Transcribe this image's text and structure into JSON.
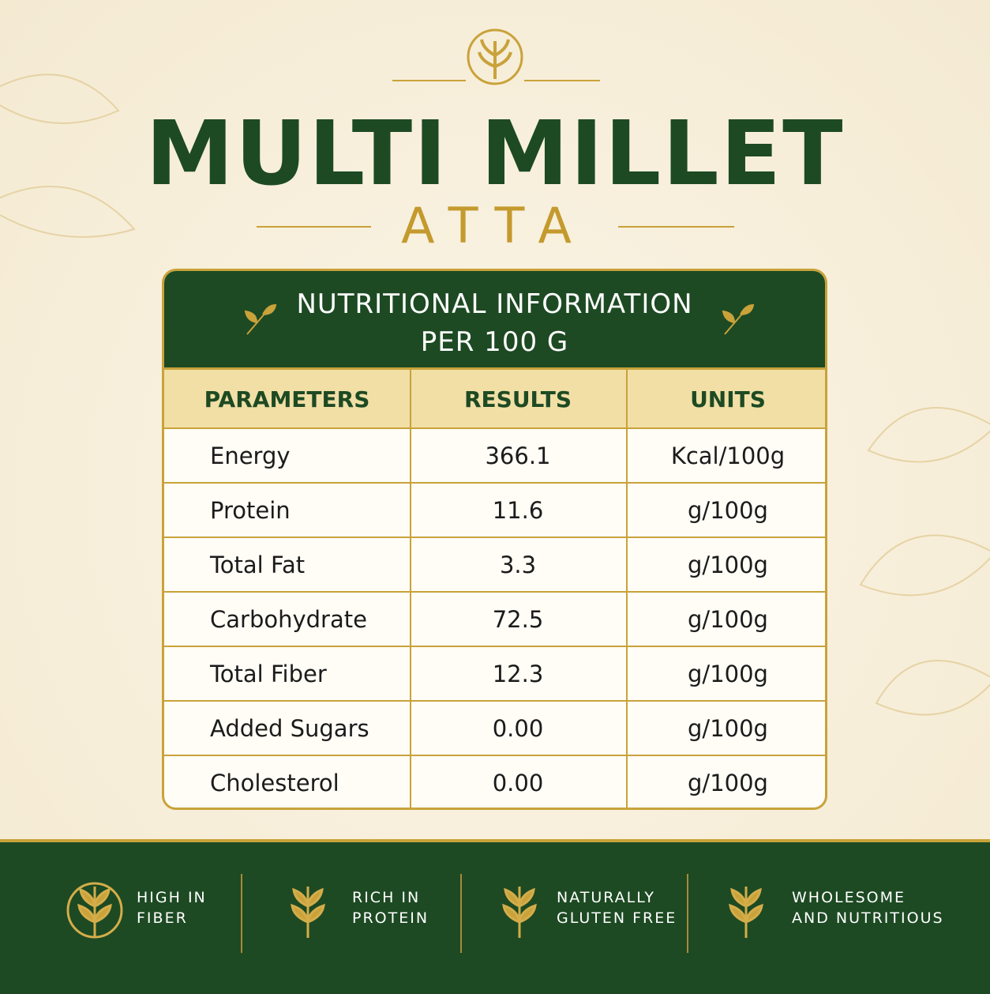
{
  "header": {
    "title": "MULTI MILLET",
    "subtitle": "ATTA"
  },
  "table": {
    "title": "NUTRITIONAL INFORMATION",
    "subtitle": "PER 100 G",
    "columns": [
      "PARAMETERS",
      "RESULTS",
      "UNITS"
    ],
    "rows": [
      [
        "Energy",
        "366.1",
        "Kcal/100g"
      ],
      [
        "Protein",
        "11.6",
        "g/100g"
      ],
      [
        "Total Fat",
        "3.3",
        "g/100g"
      ],
      [
        "Carbohydrate",
        "72.5",
        "g/100g"
      ],
      [
        "Total Fiber",
        "12.3",
        "g/100g"
      ],
      [
        "Added Sugars",
        "0.00",
        "g/100g"
      ],
      [
        "Cholesterol",
        "0.00",
        "g/100g"
      ]
    ]
  },
  "features": [
    {
      "lines": [
        "HIGH IN",
        "FIBER"
      ]
    },
    {
      "lines": [
        "RICH IN",
        "PROTEIN"
      ]
    },
    {
      "lines": [
        "NATURALLY",
        "GLUTEN FREE"
      ]
    },
    {
      "lines": [
        "WHOLESOME",
        "AND NUTRITIOUS"
      ]
    }
  ]
}
